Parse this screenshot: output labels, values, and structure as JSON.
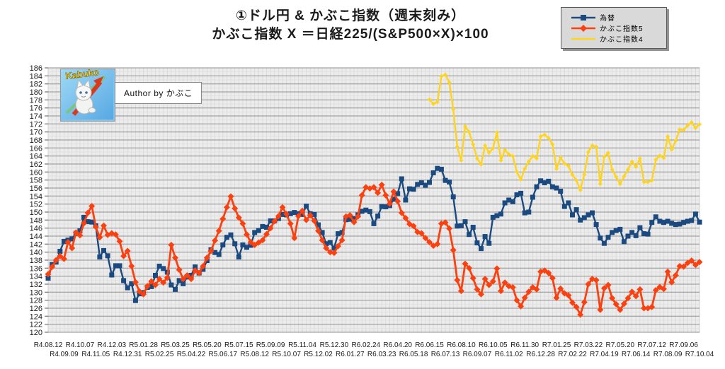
{
  "title": {
    "line1": "①ドル円 & かぶこ指数（週末刻み）",
    "line2": "かぶこ指数 X ＝日経225/(S&P500×X)×100"
  },
  "watermark": {
    "logo_text": "Kabuko",
    "author_label": "Author by かぶこ"
  },
  "legend": {
    "items": [
      {
        "label": "為替",
        "color": "#1b4a80",
        "marker": "square"
      },
      {
        "label": "かぶこ指数5",
        "color": "#fb4110",
        "marker": "diamond"
      },
      {
        "label": "かぶこ指数4",
        "color": "#ffd41e",
        "marker": "none"
      }
    ]
  },
  "chart_data": {
    "type": "line",
    "title": "①ドル円 & かぶこ指数（週末刻み）",
    "subtitle": "かぶこ指数 X ＝日経225/(S&P500×X)×100",
    "xlabel": "",
    "ylabel": "",
    "ylim": [
      120,
      186
    ],
    "y_tick_step": 2,
    "grid": true,
    "legend_position": "top-right",
    "x_unit": "week",
    "x_tick_labels_row1": [
      "R4.08.12",
      "R4.10.07",
      "R4.12.03",
      "R5.01.28",
      "R5.03.25",
      "R5.05.20",
      "R5.07.15",
      "R5.09.09",
      "R5.11.04",
      "R5.12.30",
      "R6.02.24",
      "R6.04.20",
      "R6.06.15",
      "R6.08.10",
      "R6.10.05",
      "R6.11.30",
      "R7.01.25",
      "R7.03.22",
      "R7.05.20",
      "R7.07.12",
      "R7.09.06"
    ],
    "x_tick_labels_row2": [
      "R4.09.09",
      "R4.11.05",
      "R4.12.31",
      "R5.02.25",
      "R5.04.22",
      "R5.06.17",
      "R5.08.12",
      "R5.10.07",
      "R5.12.02",
      "R6.01.27",
      "R6.03.23",
      "R6.05.18",
      "R6.07.13",
      "R6.09.07",
      "R6.11.02",
      "R6.12.28",
      "R7.02.22",
      "R7.04.19",
      "R7.06.14",
      "R7.08.09",
      "R7.10.04"
    ],
    "row1_weeks_step": 8,
    "row2_weeks_step": 8,
    "total_weeks": 165,
    "series": [
      {
        "name": "為替",
        "color": "#1b4a80",
        "marker": "square",
        "marker_size": 7,
        "line_width": 2.4,
        "start_week": 0,
        "values": [
          133.5,
          136.9,
          137.5,
          140.2,
          142.7,
          143.0,
          143.3,
          144.7,
          145.3,
          148.7,
          147.6,
          147.5,
          146.6,
          138.8,
          140.4,
          139.1,
          134.3,
          136.6,
          136.6,
          132.9,
          131.1,
          132.1,
          127.9,
          129.6,
          129.9,
          131.2,
          131.4,
          134.2,
          136.5,
          135.9,
          135.0,
          131.8,
          130.7,
          132.9,
          132.1,
          133.8,
          134.2,
          136.3,
          134.8,
          135.7,
          137.9,
          140.6,
          139.9,
          139.4,
          141.8,
          143.7,
          144.3,
          142.1,
          138.8,
          141.8,
          141.2,
          141.7,
          144.9,
          145.4,
          146.4,
          146.2,
          147.8,
          147.8,
          148.4,
          149.4,
          149.3,
          149.6,
          149.9,
          149.6,
          149.4,
          151.5,
          149.6,
          149.4,
          146.8,
          144.9,
          142.1,
          142.4,
          141.0,
          144.6,
          144.9,
          148.1,
          148.2,
          148.4,
          149.3,
          150.2,
          150.5,
          150.1,
          147.1,
          149.0,
          151.4,
          151.3,
          151.6,
          153.2,
          154.6,
          158.3,
          153.0,
          155.8,
          155.7,
          156.9,
          157.3,
          156.7,
          157.4,
          159.8,
          160.9,
          160.7,
          157.9,
          157.5,
          153.8,
          146.5,
          146.6,
          147.6,
          144.4,
          146.2,
          142.3,
          140.9,
          143.9,
          142.2,
          148.7,
          149.1,
          149.5,
          152.3,
          153.0,
          152.6,
          154.3,
          154.7,
          149.8,
          150.0,
          153.7,
          156.3,
          157.8,
          157.3,
          157.7,
          156.3,
          156.0,
          155.2,
          151.4,
          152.3,
          149.3,
          150.6,
          148.0,
          148.6,
          149.3,
          149.8,
          146.9,
          143.5,
          142.2,
          143.7,
          144.9,
          145.4,
          145.7,
          142.6,
          144.0,
          144.9,
          144.1,
          146.1,
          144.6,
          144.5,
          147.4,
          148.8,
          147.7,
          147.4,
          147.7,
          147.2,
          146.9,
          147.0,
          147.4,
          147.7,
          147.9,
          149.5,
          147.5
        ]
      },
      {
        "name": "かぶこ指数5",
        "color": "#fb4110",
        "marker": "diamond",
        "marker_size": 9,
        "line_width": 2.8,
        "start_week": 0,
        "values": [
          134.5,
          136.3,
          138.0,
          139.0,
          138.3,
          142.5,
          141.0,
          144.9,
          144.2,
          147.2,
          149.8,
          151.5,
          146.3,
          143.7,
          146.6,
          144.3,
          144.7,
          144.4,
          142.7,
          139.0,
          140.3,
          136.5,
          132.5,
          130.2,
          129.5,
          131.5,
          132.7,
          131.8,
          133.3,
          132.4,
          133.6,
          141.8,
          138.6,
          135.6,
          133.3,
          134.2,
          133.3,
          135.4,
          134.8,
          136.5,
          138.6,
          140.3,
          142.9,
          145.3,
          148.3,
          151.2,
          153.9,
          150.9,
          148.6,
          147.1,
          144.4,
          142.5,
          141.8,
          142.4,
          143.0,
          144.5,
          146.0,
          147.7,
          149.0,
          151.2,
          149.5,
          147.1,
          143.5,
          149.0,
          150.3,
          148.0,
          149.2,
          147.8,
          145.3,
          143.0,
          141.0,
          140.0,
          139.8,
          141.5,
          143.0,
          148.9,
          149.2,
          147.5,
          148.9,
          154.2,
          156.2,
          155.9,
          156.2,
          154.8,
          156.8,
          154.2,
          152.1,
          155.1,
          152.7,
          149.8,
          148.5,
          147.0,
          146.5,
          145.0,
          144.7,
          143.5,
          142.5,
          141.6,
          142.0,
          147.1,
          147.4,
          145.9,
          140.5,
          133.0,
          130.3,
          137.1,
          136.0,
          133.5,
          130.7,
          129.5,
          133.3,
          131.8,
          132.7,
          135.9,
          130.3,
          132.4,
          131.5,
          131.2,
          128.0,
          126.5,
          128.6,
          130.1,
          131.2,
          130.7,
          135.1,
          135.4,
          134.8,
          133.5,
          128.6,
          130.9,
          129.7,
          129.2,
          127.4,
          126.3,
          124.4,
          127.5,
          132.0,
          133.3,
          133.0,
          125.6,
          131.0,
          131.8,
          128.5,
          127.0,
          125.6,
          127.1,
          128.5,
          130.1,
          129.0,
          130.7,
          126.0,
          126.0,
          126.3,
          130.5,
          131.3,
          130.8,
          135.1,
          132.5,
          134.2,
          136.5,
          136.4,
          137.3,
          137.9,
          136.8,
          137.5
        ]
      },
      {
        "name": "かぶこ指数4",
        "color": "#ffd41e",
        "marker": "diamond",
        "marker_size": 6,
        "line_width": 2.4,
        "start_week": 96,
        "values": [
          178.1,
          177.0,
          177.5,
          183.9,
          184.3,
          182.4,
          175.6,
          166.3,
          162.9,
          171.4,
          170.0,
          166.9,
          163.4,
          161.9,
          166.6,
          164.8,
          165.9,
          169.9,
          162.9,
          165.5,
          164.4,
          164.0,
          160.0,
          158.1,
          160.8,
          162.6,
          164.0,
          163.4,
          168.9,
          169.3,
          168.5,
          166.9,
          160.8,
          163.6,
          162.1,
          161.5,
          159.3,
          157.9,
          155.5,
          159.4,
          165.0,
          166.6,
          166.3,
          157.0,
          163.8,
          164.8,
          160.6,
          158.8,
          157.0,
          158.9,
          160.6,
          162.6,
          161.3,
          163.4,
          157.5,
          157.5,
          157.9,
          163.1,
          164.1,
          163.5,
          168.9,
          165.6,
          167.8,
          170.6,
          170.5,
          171.6,
          172.4,
          171.0,
          171.9
        ]
      }
    ]
  }
}
